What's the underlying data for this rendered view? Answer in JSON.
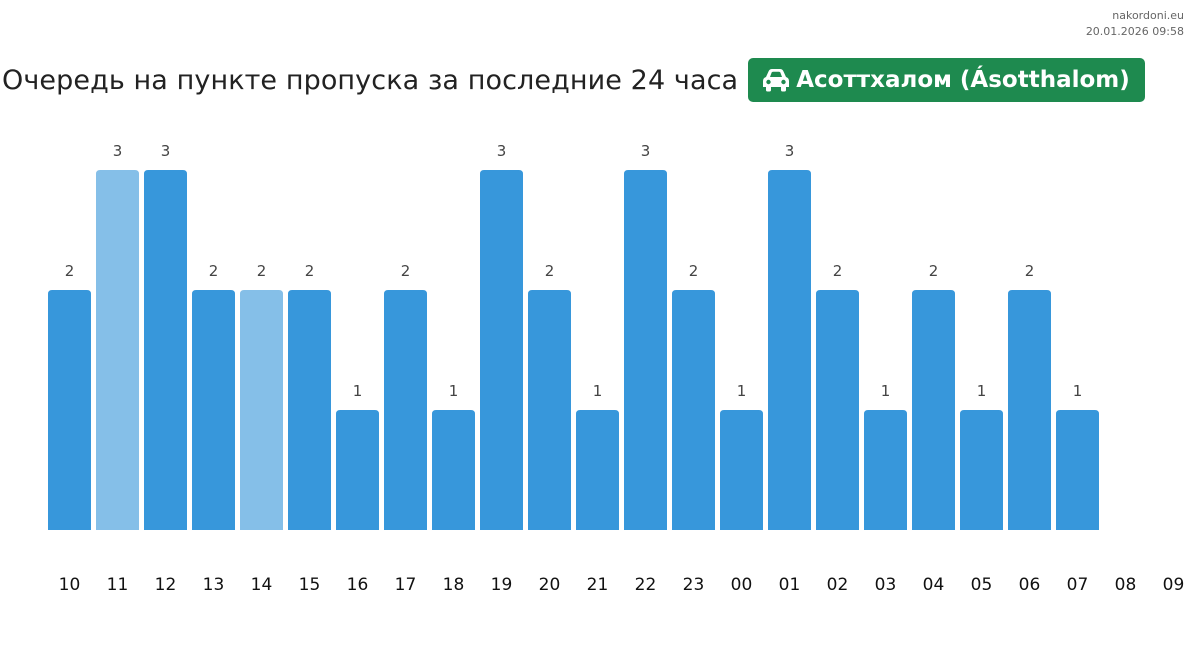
{
  "site": {
    "name": "nakordoni.eu",
    "timestamp": "20.01.2026 09:58"
  },
  "header": {
    "title": "Очередь на пункте пропуска за последние 24 часа",
    "checkpoint": "Асоттхалом (Ásotthalom)",
    "checkpoint_icon": "car-icon",
    "badge_color": "#1e8a4f"
  },
  "chart_data": {
    "type": "bar",
    "categories": [
      "10",
      "11",
      "12",
      "13",
      "14",
      "15",
      "16",
      "17",
      "18",
      "19",
      "20",
      "21",
      "22",
      "23",
      "00",
      "01",
      "02",
      "03",
      "04",
      "05",
      "06",
      "07",
      "08",
      "09"
    ],
    "values": [
      2,
      3,
      3,
      2,
      2,
      2,
      1,
      2,
      1,
      3,
      2,
      1,
      3,
      2,
      1,
      3,
      2,
      1,
      2,
      1,
      2,
      1,
      null,
      null
    ],
    "highlighted": [
      "11",
      "14"
    ],
    "ylim": [
      0,
      3
    ],
    "colors": {
      "bar": "#3797db",
      "highlight": "#85bfe8"
    },
    "title": "",
    "xlabel": "",
    "ylabel": "",
    "grid": false,
    "legend": "none"
  }
}
